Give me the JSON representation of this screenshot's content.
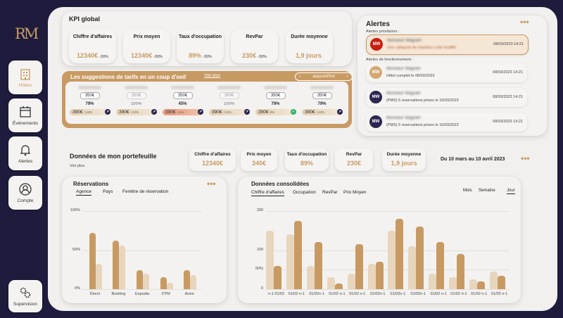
{
  "sidebar": {
    "logo": "RM",
    "items": [
      {
        "label": "Hôtels"
      },
      {
        "label": "Événements"
      },
      {
        "label": "Alertes"
      },
      {
        "label": "Compte"
      }
    ],
    "supervision": "Supervision"
  },
  "kpi_global": {
    "title": "KPI global",
    "items": [
      {
        "label": "Chiffre d'affaires",
        "value": "12340€",
        "delta": "-30%"
      },
      {
        "label": "Prix moyen",
        "value": "12340€",
        "delta": "-30%"
      },
      {
        "label": "Taux d'occupation",
        "value": "89%",
        "delta": "-30%"
      },
      {
        "label": "RevPar",
        "value": "230€",
        "delta": "-30%"
      },
      {
        "label": "Durée moyenne",
        "value": "1,9 jours",
        "delta": ""
      }
    ]
  },
  "suggestions": {
    "title": "Les suggestions de tarifs en un coup d'oeil",
    "link": "Voir plus",
    "date_label": "aujourd'hui",
    "prev": "‹",
    "next": "›",
    "cards": [
      {
        "price": "350€",
        "pct": "79%",
        "suggested": "390€",
        "delta": "+12%",
        "faded": false
      },
      {
        "price": "350€",
        "pct": "100%",
        "suggested": "390€",
        "delta": "+12%",
        "faded": true
      },
      {
        "price": "350€",
        "pct": "45%",
        "suggested": "390€",
        "delta": "-11%",
        "faded": false
      },
      {
        "price": "350€",
        "pct": "100%",
        "suggested": "390€",
        "delta": "+12%",
        "faded": true
      },
      {
        "price": "350€",
        "pct": "79%",
        "suggested": "390€",
        "delta": "0%",
        "faded": false
      },
      {
        "price": "350€",
        "pct": "79%",
        "suggested": "390€",
        "delta": "+12%",
        "faded": false
      }
    ]
  },
  "alerts": {
    "title": "Alertes",
    "more": "•••",
    "priority_label": "Alertes prioritaires :",
    "function_label": "Alertes de fonctionnement :",
    "items": [
      {
        "initials": "MW",
        "name": "Monsieur Wagram",
        "message": "Une catégorie de chambre a été modifié",
        "date": "08/03/2023 14:21",
        "color": "#c8200f"
      },
      {
        "initials": "MW",
        "name": "Monsieur Wagram",
        "message": "Hôtel complet le 08/03/2023",
        "date": "08/03/2023 14:21",
        "color": "#d3a874"
      },
      {
        "initials": "MW",
        "name": "Monsieur Wagram",
        "message": "(PMS) 5 reservations prises le 10/03/2023",
        "date": "08/03/2023 14:21",
        "color": "#2a2650"
      },
      {
        "initials": "MW",
        "name": "Monsieur Wagram",
        "message": "(PMS) 5 reservations prises le 10/03/2023",
        "date": "08/03/2023 14:21",
        "color": "#2a2650"
      }
    ]
  },
  "portfolio": {
    "title": "Données de mon portefeuille",
    "link": "Voir plus",
    "date_range": "Du 10 mars au 10 avril 2023",
    "more": "•••",
    "kpis": [
      {
        "label": "Chiffre d'affaires",
        "value": "12340€"
      },
      {
        "label": "Prix moyen",
        "value": "340€"
      },
      {
        "label": "Taux d'occupation",
        "value": "89%"
      },
      {
        "label": "RevPar",
        "value": "230€"
      },
      {
        "label": "Durée moyenne",
        "value": "1,9 jours"
      }
    ]
  },
  "reservations": {
    "title": "Réservations",
    "more": "•••",
    "tabs": [
      "Agence",
      "Pays",
      "Fenêtre de réservation"
    ]
  },
  "consolidated": {
    "title": "Données consolidées",
    "tabs": [
      "Chiffre d'affaires",
      "Occupation",
      "RevPar",
      "Prix Moyen"
    ],
    "periods": [
      "Mois",
      "Semaine",
      "Jour"
    ]
  },
  "colors": {
    "dark": "#c89a63",
    "light": "#e8d5bd",
    "navy": "#1e1b3d"
  },
  "chart_data": [
    {
      "type": "bar",
      "title": "Réservations",
      "categories": [
        "Direct",
        "Booking",
        "Expedia",
        "OTM",
        "Autre"
      ],
      "ytick_labels": [
        "0%",
        "50%",
        "100%"
      ],
      "ylim": [
        0,
        100
      ],
      "series": [
        {
          "values": [
            72,
            62,
            24,
            15,
            24
          ]
        },
        {
          "values": [
            32,
            56,
            20,
            8,
            18
          ]
        }
      ]
    },
    {
      "type": "bar",
      "title": "Données consolidées",
      "categories": [
        "n-1 01/02",
        "01/02 n-1",
        "01/02n-1",
        "01/02 n-1",
        "01/02 n-1",
        "01/02n-1",
        "01/02n-1",
        "01/02n-1",
        "01/02 n-1",
        "01/02 n-1",
        "01/02 n-1",
        "01/02 n-1"
      ],
      "ytick_labels": [
        "0",
        "50%",
        "100",
        "200"
      ],
      "ylim": [
        0,
        200
      ],
      "series": [
        {
          "values": [
            150,
            140,
            60,
            30,
            40,
            65,
            150,
            110,
            40,
            30,
            25,
            45
          ]
        },
        {
          "values": [
            60,
            175,
            120,
            15,
            115,
            70,
            180,
            160,
            120,
            90,
            20,
            35
          ]
        }
      ]
    }
  ]
}
